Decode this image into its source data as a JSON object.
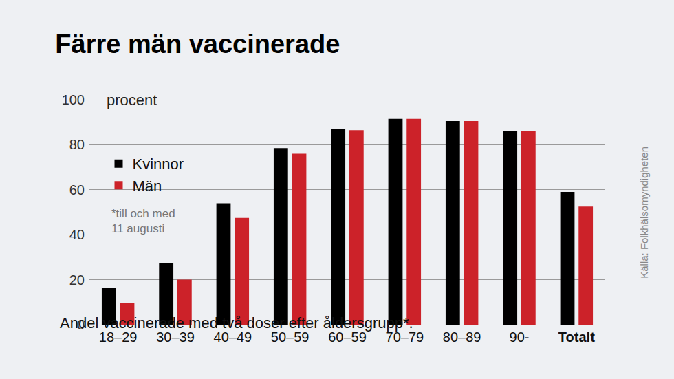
{
  "chart_data": {
    "type": "bar",
    "title": "Färre män vaccinerade",
    "subtitle": "Andel vaccinerade med två doser efter åldersgrupp*.",
    "ylabel": "procent",
    "note": [
      "*till och med",
      "11 augusti"
    ],
    "source": "Källa: Folkhälsomyndigheten",
    "categories": [
      "18–29",
      "30–39",
      "40–49",
      "50–59",
      "60–59",
      "70–79",
      "80–89",
      "90-",
      "Totalt"
    ],
    "series": [
      {
        "name": "Kvinnor",
        "color": "#000000",
        "values": [
          16.5,
          27.5,
          54,
          78.5,
          87,
          91.5,
          90.5,
          86,
          59
        ]
      },
      {
        "name": "Män",
        "color": "#cc2229",
        "values": [
          9.5,
          20,
          47.5,
          76,
          86.5,
          91.5,
          90.5,
          86,
          52.5
        ]
      }
    ],
    "ylim": [
      0,
      100
    ],
    "yticks": [
      0,
      20,
      40,
      60,
      80,
      100
    ],
    "grid": true,
    "legend": "upper left"
  }
}
